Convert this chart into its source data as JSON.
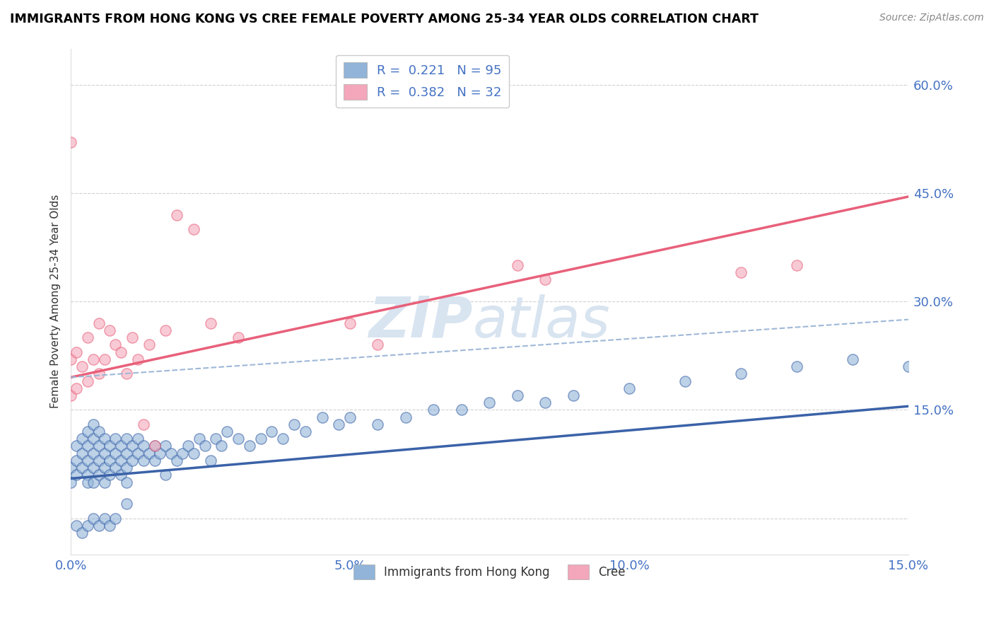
{
  "title": "IMMIGRANTS FROM HONG KONG VS CREE FEMALE POVERTY AMONG 25-34 YEAR OLDS CORRELATION CHART",
  "source": "Source: ZipAtlas.com",
  "ylabel": "Female Poverty Among 25-34 Year Olds",
  "xlim": [
    0.0,
    0.15
  ],
  "ylim": [
    -0.05,
    0.65
  ],
  "yticks": [
    0.0,
    0.15,
    0.3,
    0.45,
    0.6
  ],
  "ytick_labels": [
    "",
    "15.0%",
    "30.0%",
    "45.0%",
    "60.0%"
  ],
  "xticks": [
    0.0,
    0.05,
    0.1,
    0.15
  ],
  "xtick_labels": [
    "0.0%",
    "5.0%",
    "10.0%",
    "15.0%"
  ],
  "legend_labels": [
    "R =  0.221   N = 95",
    "R =  0.382   N = 32"
  ],
  "legend_bottom_labels": [
    "Immigrants from Hong Kong",
    "Cree"
  ],
  "blue_color": "#91B4D8",
  "pink_color": "#F4A7BA",
  "blue_line_color": "#3B62A8",
  "pink_line_color": "#E8607A",
  "gray_line_color": "#9EB8D8",
  "watermark_color": "#D8E4F0",
  "watermark": "ZIPatlas",
  "blue_scatter_x": [
    0.0,
    0.0,
    0.001,
    0.001,
    0.001,
    0.002,
    0.002,
    0.002,
    0.003,
    0.003,
    0.003,
    0.003,
    0.003,
    0.004,
    0.004,
    0.004,
    0.004,
    0.004,
    0.005,
    0.005,
    0.005,
    0.005,
    0.006,
    0.006,
    0.006,
    0.006,
    0.007,
    0.007,
    0.007,
    0.008,
    0.008,
    0.008,
    0.009,
    0.009,
    0.009,
    0.01,
    0.01,
    0.01,
    0.01,
    0.011,
    0.011,
    0.012,
    0.012,
    0.013,
    0.013,
    0.014,
    0.015,
    0.015,
    0.016,
    0.017,
    0.017,
    0.018,
    0.019,
    0.02,
    0.021,
    0.022,
    0.023,
    0.024,
    0.025,
    0.026,
    0.027,
    0.028,
    0.03,
    0.032,
    0.034,
    0.036,
    0.038,
    0.04,
    0.042,
    0.045,
    0.048,
    0.05,
    0.055,
    0.06,
    0.065,
    0.07,
    0.075,
    0.08,
    0.085,
    0.09,
    0.1,
    0.11,
    0.12,
    0.13,
    0.14,
    0.15,
    0.001,
    0.002,
    0.003,
    0.004,
    0.005,
    0.006,
    0.007,
    0.008,
    0.01
  ],
  "blue_scatter_y": [
    0.05,
    0.07,
    0.06,
    0.08,
    0.1,
    0.07,
    0.09,
    0.11,
    0.06,
    0.08,
    0.1,
    0.05,
    0.12,
    0.07,
    0.09,
    0.11,
    0.05,
    0.13,
    0.08,
    0.1,
    0.06,
    0.12,
    0.07,
    0.09,
    0.11,
    0.05,
    0.08,
    0.1,
    0.06,
    0.09,
    0.11,
    0.07,
    0.08,
    0.1,
    0.06,
    0.07,
    0.09,
    0.11,
    0.05,
    0.08,
    0.1,
    0.09,
    0.11,
    0.08,
    0.1,
    0.09,
    0.08,
    0.1,
    0.09,
    0.1,
    0.06,
    0.09,
    0.08,
    0.09,
    0.1,
    0.09,
    0.11,
    0.1,
    0.08,
    0.11,
    0.1,
    0.12,
    0.11,
    0.1,
    0.11,
    0.12,
    0.11,
    0.13,
    0.12,
    0.14,
    0.13,
    0.14,
    0.13,
    0.14,
    0.15,
    0.15,
    0.16,
    0.17,
    0.16,
    0.17,
    0.18,
    0.19,
    0.2,
    0.21,
    0.22,
    0.21,
    -0.01,
    -0.02,
    -0.01,
    0.0,
    -0.01,
    0.0,
    -0.01,
    0.0,
    0.02
  ],
  "pink_scatter_x": [
    0.0,
    0.0,
    0.0,
    0.001,
    0.001,
    0.002,
    0.003,
    0.003,
    0.004,
    0.005,
    0.005,
    0.006,
    0.007,
    0.008,
    0.009,
    0.01,
    0.011,
    0.012,
    0.013,
    0.014,
    0.015,
    0.017,
    0.019,
    0.022,
    0.025,
    0.03,
    0.05,
    0.055,
    0.08,
    0.085,
    0.12,
    0.13
  ],
  "pink_scatter_y": [
    0.17,
    0.22,
    0.52,
    0.18,
    0.23,
    0.21,
    0.19,
    0.25,
    0.22,
    0.2,
    0.27,
    0.22,
    0.26,
    0.24,
    0.23,
    0.2,
    0.25,
    0.22,
    0.13,
    0.24,
    0.1,
    0.26,
    0.42,
    0.4,
    0.27,
    0.25,
    0.27,
    0.24,
    0.35,
    0.33,
    0.34,
    0.35
  ],
  "blue_trend_x": [
    0.0,
    0.15
  ],
  "blue_trend_y": [
    0.055,
    0.155
  ],
  "pink_trend_x": [
    0.0,
    0.15
  ],
  "pink_trend_y": [
    0.195,
    0.445
  ],
  "gray_trend_x": [
    0.0,
    0.15
  ],
  "gray_trend_y": [
    0.195,
    0.275
  ]
}
